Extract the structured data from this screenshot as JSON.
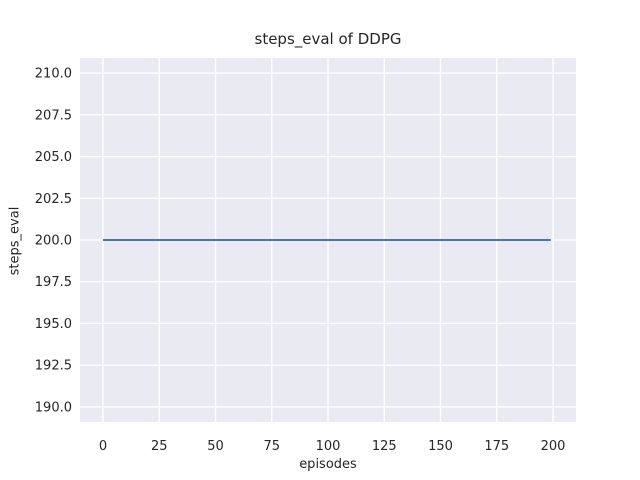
{
  "chart_data": {
    "type": "line",
    "title": "steps_eval of DDPG",
    "xlabel": "episodes",
    "ylabel": "steps_eval",
    "x_tick_labels": [
      "0",
      "25",
      "50",
      "75",
      "100",
      "125",
      "150",
      "175",
      "200"
    ],
    "x_tick_values": [
      0,
      25,
      50,
      75,
      100,
      125,
      150,
      175,
      200
    ],
    "y_tick_labels": [
      "190.0",
      "192.5",
      "195.0",
      "197.5",
      "200.0",
      "202.5",
      "205.0",
      "207.5",
      "210.0"
    ],
    "y_tick_values": [
      190.0,
      192.5,
      195.0,
      197.5,
      200.0,
      202.5,
      205.0,
      207.5,
      210.0
    ],
    "xlim": [
      -10.2,
      210.2
    ],
    "ylim": [
      189.1,
      210.9
    ],
    "grid": true,
    "legend_position": "none",
    "series": [
      {
        "name": "steps_eval",
        "color": "#4c72b0",
        "x": [
          0,
          199
        ],
        "values": [
          200.0,
          200.0
        ]
      }
    ],
    "style": {
      "figure_background": "#ffffff",
      "axes_background": "#eaeaf2",
      "gridline_color": "#ffffff",
      "text_color": "#262626"
    }
  }
}
